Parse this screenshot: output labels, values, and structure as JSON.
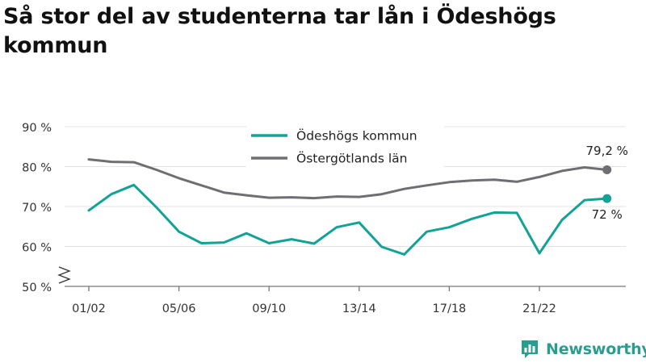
{
  "title": "Så stor del av studenterna tar lån i Ödeshögs kommun",
  "brand": {
    "name": "Newsworthy",
    "icon": "bar-chart-logo-icon",
    "color": "#2a9d90"
  },
  "chart_data": {
    "type": "line",
    "title": "Så stor del av studenterna tar lån i Ödeshögs kommun",
    "xlabel": "",
    "ylabel": "",
    "ylim": [
      50,
      90
    ],
    "yticks": [
      50,
      60,
      70,
      80,
      90
    ],
    "ytick_labels": [
      "50 %",
      "60 %",
      "70 %",
      "80 %",
      "90 %"
    ],
    "y_axis_break": true,
    "grid": "horizontal",
    "legend_position": "top-center",
    "x": [
      "01/02",
      "02/03",
      "03/04",
      "04/05",
      "05/06",
      "06/07",
      "07/08",
      "08/09",
      "09/10",
      "10/11",
      "11/12",
      "12/13",
      "13/14",
      "14/15",
      "15/16",
      "16/17",
      "17/18",
      "18/19",
      "19/20",
      "20/21",
      "21/22",
      "22/23",
      "23/24",
      "24/25"
    ],
    "x_tick_labels": [
      "01/02",
      "05/06",
      "09/10",
      "13/14",
      "17/18",
      "21/22"
    ],
    "series": [
      {
        "name": "Ödeshögs kommun",
        "color": "#12a396",
        "values": [
          69.0,
          73.1,
          75.4,
          69.8,
          63.7,
          60.8,
          61.0,
          63.3,
          60.8,
          61.8,
          60.7,
          64.8,
          66.0,
          59.9,
          58.0,
          63.7,
          64.8,
          66.9,
          68.5,
          68.4,
          58.3,
          66.6,
          71.6,
          72.0
        ],
        "end_label": "72 %"
      },
      {
        "name": "Östergötlands län",
        "color": "#6e6e73",
        "values": [
          81.8,
          81.2,
          81.1,
          79.2,
          77.1,
          75.3,
          73.5,
          72.8,
          72.2,
          72.3,
          72.1,
          72.5,
          72.4,
          73.1,
          74.4,
          75.3,
          76.1,
          76.5,
          76.7,
          76.2,
          77.4,
          78.9,
          79.8,
          79.2
        ],
        "end_label": "79,2 %"
      }
    ]
  }
}
